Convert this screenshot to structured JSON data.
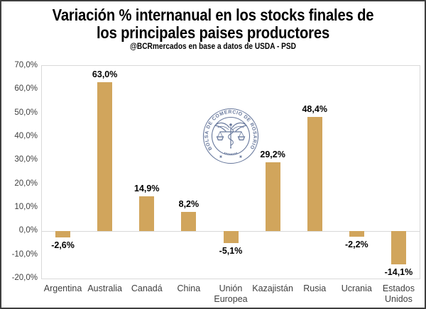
{
  "header": {
    "title_line1": "Variación % internanual en los stocks finales de",
    "title_line2": "los principales paises productores",
    "subtitle": "@BCRmercados en base a datos de USDA - PSD"
  },
  "watermark": {
    "icon": "bcr-rosario-seal",
    "ring_text": "BOLSA DE COMERCIO DE ROSARIO",
    "color": "#3c5180"
  },
  "colors": {
    "bar": "#d1a55c",
    "plot_border": "#d9d9d9",
    "axis_text": "#3f3f3f",
    "data_label": "#000000",
    "frame_border": "#3f3f3f",
    "background": "#ffffff"
  },
  "chart_data": {
    "type": "bar",
    "title": "Variación % internanual en los stocks finales de los principales paises productores",
    "subtitle": "@BCRmercados en base a datos de USDA - PSD",
    "categories": [
      "Argentina",
      "Australia",
      "Canadá",
      "China",
      "Unión Europea",
      "Kazajistán",
      "Rusia",
      "Ucrania",
      "Estados Unidos"
    ],
    "values": [
      -2.6,
      63.0,
      14.9,
      8.2,
      -5.1,
      29.2,
      48.4,
      -2.2,
      -14.1
    ],
    "value_labels": [
      "-2,6%",
      "63,0%",
      "14,9%",
      "8,2%",
      "-5,1%",
      "29,2%",
      "48,4%",
      "-2,2%",
      "-14,1%"
    ],
    "xlabel": "",
    "ylabel": "",
    "ylim": [
      -20,
      70
    ],
    "ytick_step": 10,
    "ytick_labels": [
      "70,0%",
      "60,0%",
      "50,0%",
      "40,0%",
      "30,0%",
      "20,0%",
      "10,0%",
      "0,0%",
      "-10,0%",
      "-20,0%"
    ],
    "grid": false,
    "legend_position": "none",
    "bar_color": "#d1a55c"
  }
}
